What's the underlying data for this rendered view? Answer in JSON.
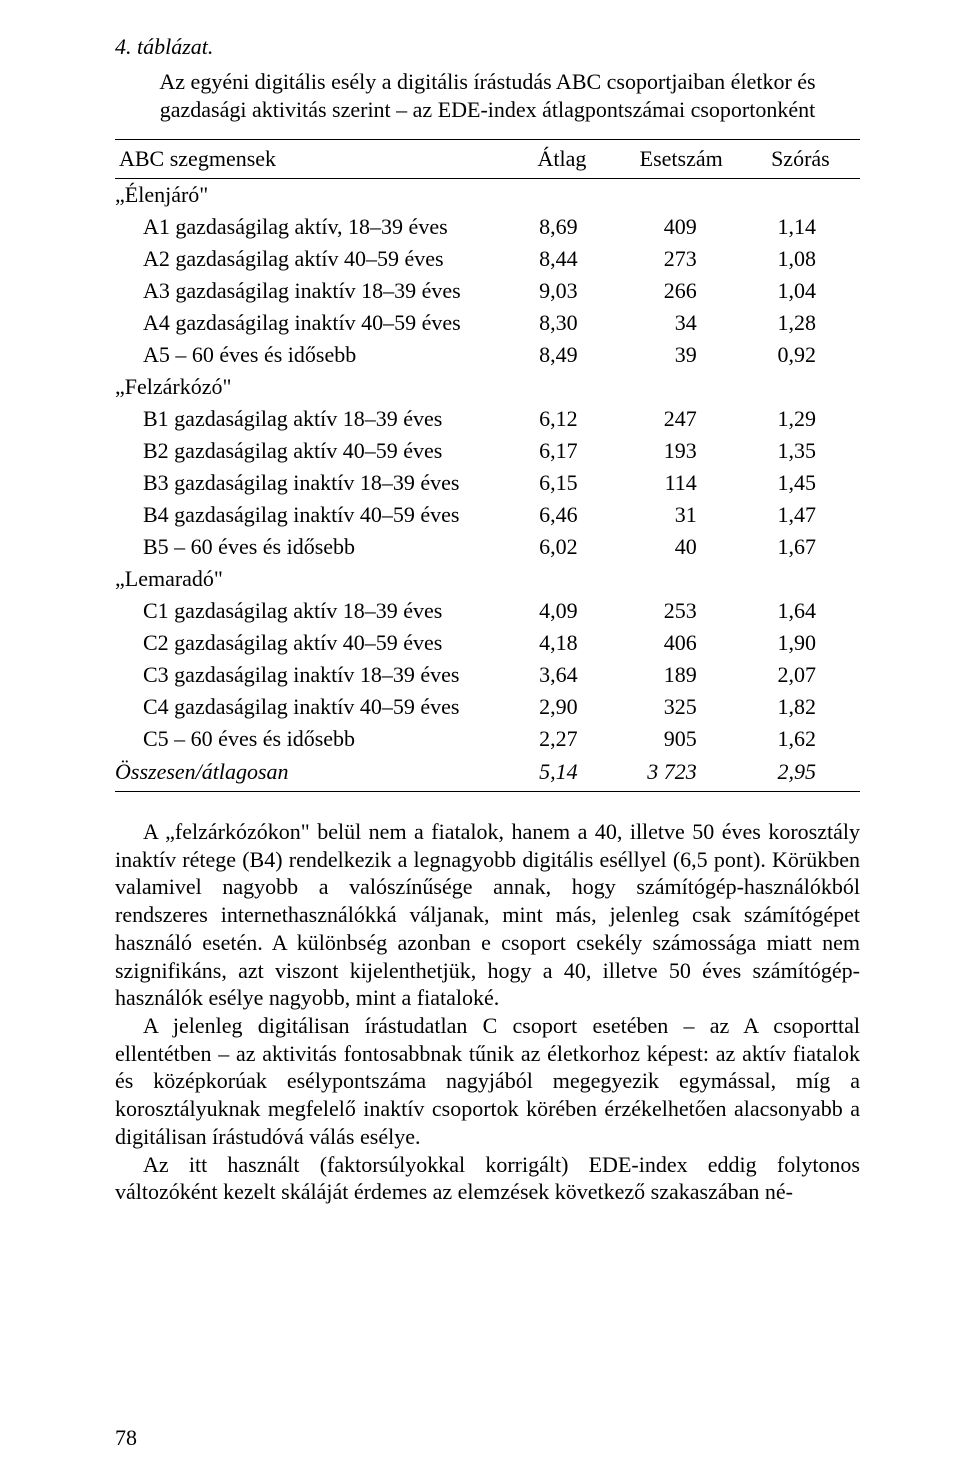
{
  "table": {
    "label": "4. táblázat.",
    "title_line1": "Az egyéni digitális esély a digitális írástudás ABC csoportjaiban életkor és",
    "title_line2": "gazdasági aktivitás szerint – az EDE-index átlagpontszámai csoportonként",
    "headers": {
      "c1": "ABC szegmensek",
      "c2": "Átlag",
      "c3": "Esetszám",
      "c4": "Szórás"
    },
    "rows": [
      {
        "label": "„Élenjáró\"",
        "type": "group"
      },
      {
        "label": "A1 gazdaságilag aktív, 18–39 éves",
        "v1": "8,69",
        "v2": "409",
        "v3": "1,14",
        "type": "data"
      },
      {
        "label": "A2 gazdaságilag aktív 40–59 éves",
        "v1": "8,44",
        "v2": "273",
        "v3": "1,08",
        "type": "data"
      },
      {
        "label": "A3 gazdaságilag inaktív 18–39 éves",
        "v1": "9,03",
        "v2": "266",
        "v3": "1,04",
        "type": "data"
      },
      {
        "label": "A4 gazdaságilag inaktív 40–59 éves",
        "v1": "8,30",
        "v2": "34",
        "v3": "1,28",
        "type": "data"
      },
      {
        "label": "A5 – 60 éves és idősebb",
        "v1": "8,49",
        "v2": "39",
        "v3": "0,92",
        "type": "data"
      },
      {
        "label": "„Felzárkózó\"",
        "type": "group"
      },
      {
        "label": "B1 gazdaságilag aktív 18–39 éves",
        "v1": "6,12",
        "v2": "247",
        "v3": "1,29",
        "type": "data"
      },
      {
        "label": "B2 gazdaságilag aktív 40–59 éves",
        "v1": "6,17",
        "v2": "193",
        "v3": "1,35",
        "type": "data"
      },
      {
        "label": "B3 gazdaságilag inaktív 18–39 éves",
        "v1": "6,15",
        "v2": "114",
        "v3": "1,45",
        "type": "data"
      },
      {
        "label": "B4 gazdaságilag inaktív 40–59 éves",
        "v1": "6,46",
        "v2": "31",
        "v3": "1,47",
        "type": "data"
      },
      {
        "label": "B5 – 60 éves és idősebb",
        "v1": "6,02",
        "v2": "40",
        "v3": "1,67",
        "type": "data"
      },
      {
        "label": "„Lemaradó\"",
        "type": "group"
      },
      {
        "label": "C1 gazdaságilag aktív 18–39 éves",
        "v1": "4,09",
        "v2": "253",
        "v3": "1,64",
        "type": "data"
      },
      {
        "label": "C2 gazdaságilag aktív 40–59 éves",
        "v1": "4,18",
        "v2": "406",
        "v3": "1,90",
        "type": "data"
      },
      {
        "label": "C3 gazdaságilag inaktív 18–39 éves",
        "v1": "3,64",
        "v2": "189",
        "v3": "2,07",
        "type": "data"
      },
      {
        "label": "C4 gazdaságilag inaktív 40–59 éves",
        "v1": "2,90",
        "v2": "325",
        "v3": "1,82",
        "type": "data"
      },
      {
        "label": "C5 – 60 éves és idősebb",
        "v1": "2,27",
        "v2": "905",
        "v3": "1,62",
        "type": "data"
      },
      {
        "label": "Összesen/átlagosan",
        "v1": "5,14",
        "v2": "3 723",
        "v3": "2,95",
        "type": "total"
      }
    ]
  },
  "paragraphs": {
    "p1": "A „felzárkózókon\" belül nem a fiatalok, hanem a 40, illetve 50 éves korosztály inaktív rétege (B4) rendelkezik a legnagyobb digitális eséllyel (6,5 pont). Körükben valamivel nagyobb a valószínűsége annak, hogy számítógép-használókból rendszeres internethasználókká váljanak, mint más, jelenleg csak számítógépet használó esetén. A különbség azonban e csoport csekély számossága miatt nem szignifikáns, azt viszont kijelenthetjük, hogy a 40, illetve 50 éves számítógép-használók esélye nagyobb, mint a fiataloké.",
    "p2": "A jelenleg digitálisan írástudatlan C csoport esetében – az A csoporttal ellentétben – az aktivitás fontosabbnak tűnik az életkorhoz képest: az aktív fiatalok és középkorúak esélypontszáma nagyjából megegyezik egymással, míg a korosztályuknak megfelelő inaktív csoportok körében érzékelhetően alacsonyabb a digitálisan írástudóvá válás esélye.",
    "p3": "Az itt használt (faktorsúlyokkal korrigált) EDE-index eddig folytonos változóként kezelt skáláját érdemes az elemzések következő szakaszában né-"
  },
  "page_number": "78"
}
